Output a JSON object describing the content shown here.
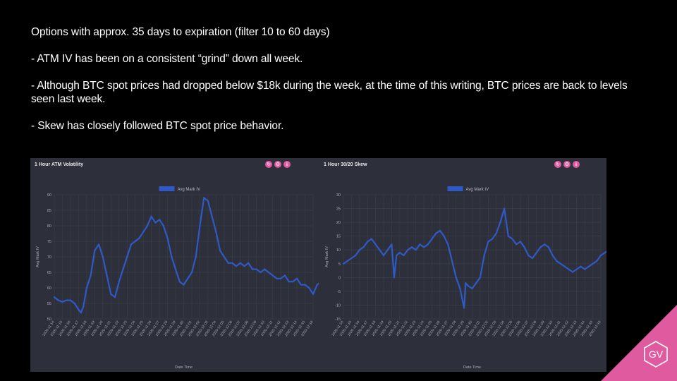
{
  "notes": [
    "Options with approx. 35 days to expiration (filter 10 to 60 days)",
    "- ATM IV has been on a consistent “grind” down all week.",
    "- Although BTC spot prices had dropped below $18k during the week, at the time of this writing, BTC prices are back to levels seen last week.",
    "- Skew has closely followed BTC spot price behavior."
  ],
  "panel_buttons": [
    "↻",
    "⚙",
    "↓"
  ],
  "panel_button_icons": [
    "refresh-icon",
    "settings-icon",
    "download-icon"
  ],
  "brand": {
    "logo": "GV",
    "color": "#e05aa0"
  },
  "colors": {
    "series": "#2f59c6",
    "panel_bg": "#2d303a",
    "grid": "#3d404b"
  },
  "chart_data": [
    {
      "type": "line",
      "title": "1 Hour ATM Volatility",
      "xlabel": "Date Time",
      "ylabel": "Avg Mark IV",
      "ylim": [
        50,
        90
      ],
      "yticks": [
        90,
        85,
        80,
        75,
        70,
        65,
        60,
        55,
        50
      ],
      "legend": "top-center",
      "grid": true,
      "x": [
        "2020-11-14",
        "2020-11-15",
        "2020-11-16",
        "2020-11-17",
        "2020-11-18",
        "2020-11-19",
        "2020-11-20",
        "2020-11-21",
        "2020-11-22",
        "2020-11-23",
        "2020-11-24",
        "2020-11-25",
        "2020-11-26",
        "2020-11-27",
        "2020-11-28",
        "2020-11-29",
        "2020-11-30",
        "2020-12-01",
        "2020-12-02",
        "2020-12-03",
        "2020-12-04",
        "2020-12-05",
        "2020-12-06",
        "2020-12-07",
        "2020-12-08",
        "2020-12-09",
        "2020-12-10",
        "2020-12-11",
        "2020-12-12",
        "2020-12-13",
        "2020-12-14",
        "2020-12-15",
        "2020-12-16"
      ],
      "series": [
        {
          "name": "Avg Mark IV",
          "x": [
            0,
            0.5,
            1,
            1.5,
            2,
            2.5,
            3,
            3.3,
            3.6,
            4,
            4.5,
            5,
            5.5,
            6,
            6.5,
            7,
            7.5,
            8,
            8.5,
            9,
            9.5,
            10,
            10.5,
            11,
            11.5,
            12,
            12.5,
            13,
            13.5,
            14,
            14.5,
            15,
            15.5,
            16,
            16.5,
            17,
            17.5,
            18,
            18.5,
            19,
            19.5,
            20,
            20.5,
            21,
            21.5,
            22,
            22.5,
            23,
            23.5,
            24,
            24.5,
            25,
            25.5,
            26,
            26.5,
            27,
            27.5,
            28,
            28.5,
            29,
            29.5,
            30,
            30.5,
            31,
            31.5,
            32,
            32.5,
            33
          ],
          "values": [
            57,
            56,
            55.5,
            56,
            56,
            55,
            53,
            52,
            54,
            60,
            64,
            72,
            74,
            70,
            64,
            58,
            57,
            62,
            66,
            70,
            74,
            75,
            76,
            78,
            80,
            83,
            81,
            82,
            80,
            76,
            70,
            66,
            62,
            61,
            63,
            65,
            70,
            80,
            89,
            88,
            83,
            78,
            72,
            70,
            68,
            68,
            67,
            68,
            67,
            68,
            66,
            66,
            65,
            66,
            65,
            64,
            63,
            63,
            64,
            62,
            62,
            63,
            61,
            61,
            60,
            58,
            61,
            62
          ]
        }
      ]
    },
    {
      "type": "line",
      "title": "1 Hour 30/20 Skew",
      "xlabel": "Date Time",
      "ylabel": "Avg Mark IV",
      "ylim": [
        -15,
        30
      ],
      "yticks": [
        30,
        25,
        20,
        15,
        10,
        5,
        0,
        -5,
        -10,
        -15
      ],
      "legend": "top-center",
      "grid": true,
      "x": [
        "2020-11-14",
        "2020-11-15",
        "2020-11-16",
        "2020-11-17",
        "2020-11-18",
        "2020-11-19",
        "2020-11-20",
        "2020-11-21",
        "2020-11-22",
        "2020-11-23",
        "2020-11-24",
        "2020-11-25",
        "2020-11-26",
        "2020-11-27",
        "2020-11-28",
        "2020-11-29",
        "2020-11-30",
        "2020-12-01",
        "2020-12-02",
        "2020-12-03",
        "2020-12-04",
        "2020-12-05",
        "2020-12-06",
        "2020-12-07",
        "2020-12-08",
        "2020-12-09",
        "2020-12-10",
        "2020-12-11",
        "2020-12-12",
        "2020-12-13",
        "2020-12-14",
        "2020-12-15",
        "2020-12-16"
      ],
      "series": [
        {
          "name": "Avg Mark IV",
          "x": [
            0,
            0.5,
            1,
            1.5,
            2,
            2.5,
            3,
            3.5,
            4,
            4.5,
            5,
            5.5,
            6,
            6.3,
            6.6,
            7,
            7.5,
            8,
            8.5,
            9,
            9.5,
            10,
            10.5,
            11,
            11.5,
            12,
            12.5,
            13,
            13.5,
            14,
            14.5,
            15,
            15.2,
            15.5,
            16,
            16.5,
            17,
            17.5,
            18,
            18.5,
            19,
            19.5,
            20,
            20.5,
            21,
            21.5,
            22,
            22.5,
            23,
            23.5,
            24,
            24.5,
            25,
            25.5,
            26,
            26.5,
            27,
            27.5,
            28,
            28.5,
            29,
            29.5,
            30,
            30.5,
            31,
            31.5,
            32,
            32.5,
            33
          ],
          "values": [
            5,
            6,
            7,
            8,
            10,
            11,
            13,
            14,
            12,
            10,
            8,
            10,
            12,
            0,
            8,
            9,
            8,
            10,
            11,
            10,
            12,
            11,
            12,
            14,
            16,
            17,
            15,
            12,
            6,
            0,
            -4,
            -11,
            -2,
            -3,
            -4,
            -2,
            0,
            8,
            13,
            14,
            16,
            20,
            25,
            15,
            14,
            12,
            13,
            11,
            8,
            7,
            9,
            11,
            12,
            11,
            8,
            6,
            5,
            4,
            3,
            2,
            3,
            4,
            3,
            4,
            5,
            6,
            8,
            9,
            10
          ]
        }
      ]
    }
  ]
}
